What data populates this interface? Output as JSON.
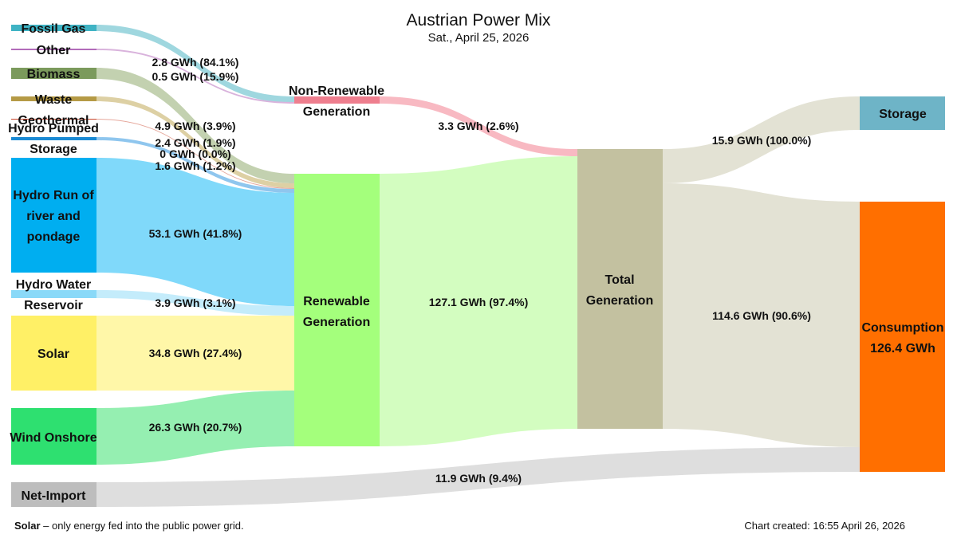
{
  "chart_data": {
    "type": "sankey",
    "title": "Austrian Power Mix",
    "subtitle": "Sat., April 25, 2026",
    "unit": "GWh",
    "nodes": [
      {
        "id": "fossil_gas",
        "label": "Fossil Gas",
        "color": "#3fb3c4"
      },
      {
        "id": "other",
        "label": "Other",
        "color": "#b26cba"
      },
      {
        "id": "biomass",
        "label": "Biomass",
        "color": "#7b9a5c"
      },
      {
        "id": "waste",
        "label": "Waste",
        "color": "#b59a45"
      },
      {
        "id": "geothermal",
        "label": "Geothermal",
        "color": "#c8452c"
      },
      {
        "id": "hydro_pumped",
        "label": "Hydro Pumped Storage",
        "color": "#1a8ad4"
      },
      {
        "id": "hydro_ror",
        "label": "Hydro Run of river and pondage",
        "color": "#00aef0"
      },
      {
        "id": "hydro_res",
        "label": "Hydro Water Reservoir",
        "color": "#8ad9f8"
      },
      {
        "id": "solar",
        "label": "Solar",
        "color": "#fff066"
      },
      {
        "id": "wind",
        "label": "Wind Onshore",
        "color": "#2ee070"
      },
      {
        "id": "net_import",
        "label": "Net-Import",
        "color": "#bdbdbd"
      },
      {
        "id": "non_renewable",
        "label": "Non-Renewable Generation",
        "color": "#ee7e8e"
      },
      {
        "id": "renewable",
        "label": "Renewable Generation",
        "color": "#a4ff7c"
      },
      {
        "id": "total",
        "label": "Total Generation",
        "color": "#c3c1a0"
      },
      {
        "id": "storage",
        "label": "Storage",
        "color": "#6eb4c7"
      },
      {
        "id": "consumption",
        "label": "Consumption",
        "value_label": "126.4 GWh",
        "color": "#ff6f00"
      }
    ],
    "links": [
      {
        "source": "fossil_gas",
        "target": "non_renewable",
        "value": 2.8,
        "label": "2.8 GWh (84.1%)",
        "color": "#9fd7df"
      },
      {
        "source": "other",
        "target": "non_renewable",
        "value": 0.5,
        "label": "0.5 GWh (15.9%)",
        "color": "#d9b3dc"
      },
      {
        "source": "biomass",
        "target": "renewable",
        "value": 4.9,
        "label": "4.9 GWh (3.9%)",
        "color": "#c3d1b0"
      },
      {
        "source": "waste",
        "target": "renewable",
        "value": 2.4,
        "label": "2.4 GWh (1.9%)",
        "color": "#ddd0a4"
      },
      {
        "source": "geothermal",
        "target": "renewable",
        "value": 0.0,
        "label": "0 GWh (0.0%)",
        "color": "#e6a89c"
      },
      {
        "source": "hydro_pumped",
        "target": "renewable",
        "value": 1.6,
        "label": "1.6 GWh (1.2%)",
        "color": "#8fc6ee"
      },
      {
        "source": "hydro_ror",
        "target": "renewable",
        "value": 53.1,
        "label": "53.1 GWh (41.8%)",
        "color": "#80d9fa"
      },
      {
        "source": "hydro_res",
        "target": "renewable",
        "value": 3.9,
        "label": "3.9 GWh (3.1%)",
        "color": "#c4ecfb"
      },
      {
        "source": "solar",
        "target": "renewable",
        "value": 34.8,
        "label": "34.8 GWh (27.4%)",
        "color": "#fff7a8"
      },
      {
        "source": "wind",
        "target": "renewable",
        "value": 26.3,
        "label": "26.3 GWh (20.7%)",
        "color": "#95efb1"
      },
      {
        "source": "non_renewable",
        "target": "total",
        "value": 3.3,
        "label": "3.3 GWh (2.6%)",
        "color": "#f8b9c2"
      },
      {
        "source": "renewable",
        "target": "total",
        "value": 127.1,
        "label": "127.1 GWh (97.4%)",
        "color": "#d3fdc0"
      },
      {
        "source": "total",
        "target": "storage",
        "value": 15.9,
        "label": "15.9 GWh (100.0%)",
        "color": "#e3e2d4"
      },
      {
        "source": "total",
        "target": "consumption",
        "value": 114.6,
        "label": "114.6 GWh (90.6%)",
        "color": "#e3e2d4"
      },
      {
        "source": "net_import",
        "target": "consumption",
        "value": 11.9,
        "label": "11.9 GWh (9.4%)",
        "color": "#dedede"
      }
    ],
    "legend": "none",
    "grid": false
  },
  "footnote": {
    "bold": "Solar",
    "text": " –  only energy fed into the public power grid."
  },
  "created": "Chart created: 16:55 April 26, 2026"
}
